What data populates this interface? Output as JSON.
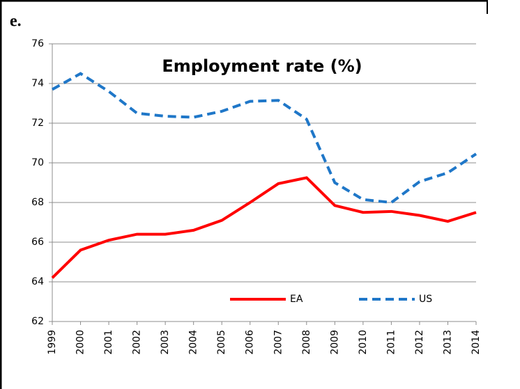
{
  "panel_label": "e.",
  "chart_data": {
    "type": "line",
    "title": "Employment rate (%)",
    "categories": [
      "1999",
      "2000",
      "2001",
      "2002",
      "2003",
      "2004",
      "2005",
      "2006",
      "2007",
      "2008",
      "2009",
      "2010",
      "2011",
      "2012",
      "2013",
      "2014"
    ],
    "series": [
      {
        "name": "EA",
        "color": "#ff0000",
        "dash": false,
        "values": [
          64.2,
          65.6,
          66.1,
          66.4,
          66.4,
          66.6,
          67.1,
          68.0,
          68.95,
          69.25,
          67.85,
          67.5,
          67.55,
          67.35,
          67.05,
          67.5
        ]
      },
      {
        "name": "US",
        "color": "#1f77c8",
        "dash": true,
        "values": [
          73.7,
          74.5,
          73.6,
          72.5,
          72.35,
          72.3,
          72.6,
          73.1,
          73.15,
          72.2,
          69.0,
          68.15,
          68.0,
          69.05,
          69.5,
          70.45
        ]
      }
    ],
    "ylim": [
      62,
      76
    ],
    "yticks": [
      62,
      64,
      66,
      68,
      70,
      72,
      74,
      76
    ],
    "grid": true,
    "legend": "bottom"
  }
}
